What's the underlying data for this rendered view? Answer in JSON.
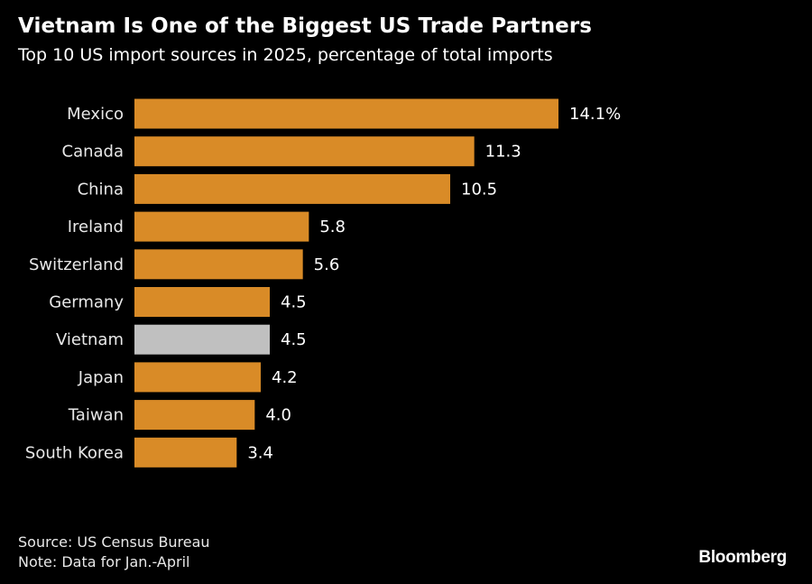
{
  "chart_data": {
    "type": "bar",
    "orientation": "horizontal",
    "title": "Vietnam Is One of the Biggest US Trade Partners",
    "subtitle": "Top 10 US import sources in 2025, percentage of total imports",
    "xlabel": "",
    "ylabel": "",
    "categories": [
      "Mexico",
      "Canada",
      "China",
      "Ireland",
      "Switzerland",
      "Germany",
      "Vietnam",
      "Japan",
      "Taiwan",
      "South Korea"
    ],
    "values": [
      14.1,
      11.3,
      10.5,
      5.8,
      5.6,
      4.5,
      4.5,
      4.2,
      4.0,
      3.4
    ],
    "value_labels": [
      "14.1%",
      "11.3",
      "10.5",
      "5.8",
      "5.6",
      "4.5",
      "4.5",
      "4.2",
      "4.0",
      "3.4"
    ],
    "highlight": "Vietnam",
    "xlim": [
      0,
      14.1
    ],
    "grid": false,
    "legend": "none",
    "colors": {
      "default": "#d98b27",
      "highlight": "#c0c0c0",
      "background": "#000000"
    }
  },
  "footer": {
    "source": "Source: US Census Bureau",
    "note": "Note: Data for Jan.-April",
    "brand": "Bloomberg"
  }
}
